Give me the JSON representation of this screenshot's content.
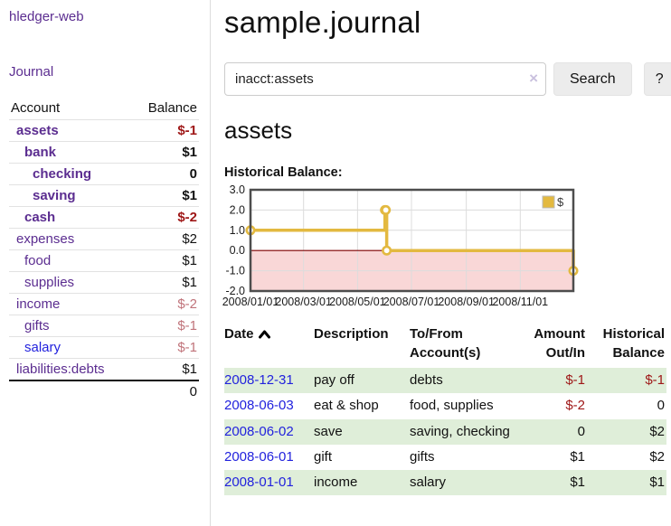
{
  "app": {
    "name": "hledger-web"
  },
  "nav": {
    "journal": "Journal"
  },
  "colors": {
    "link_purple": "#5b2d90",
    "link_blue": "#2222dd",
    "negative_strong": "#9e1616",
    "negative_weak": "#c0737a",
    "row_green": "#dfeed9",
    "chart_line_gold": "#e3b940",
    "chart_negative_pink": "#f9d7d7",
    "chart_zero_line": "#7d0000",
    "chart_border": "#4d4d4d",
    "chart_grid": "#dcdcdc",
    "axis_text": "#1a1a1a"
  },
  "sidebar": {
    "headers": {
      "account": "Account",
      "balance": "Balance"
    },
    "accounts": [
      {
        "label": "assets",
        "balance": "$-1",
        "indent": 0,
        "bold": true,
        "neg": "strong",
        "color": "purple"
      },
      {
        "label": "bank",
        "balance": "$1",
        "indent": 1,
        "bold": true,
        "neg": "none",
        "color": "purple"
      },
      {
        "label": "checking",
        "balance": "0",
        "indent": 2,
        "bold": true,
        "neg": "none",
        "color": "purple"
      },
      {
        "label": "saving",
        "balance": "$1",
        "indent": 2,
        "bold": true,
        "neg": "none",
        "color": "purple"
      },
      {
        "label": "cash",
        "balance": "$-2",
        "indent": 1,
        "bold": true,
        "neg": "strong",
        "color": "purple"
      },
      {
        "label": "expenses",
        "balance": "$2",
        "indent": 0,
        "bold": false,
        "neg": "none",
        "color": "purple"
      },
      {
        "label": "food",
        "balance": "$1",
        "indent": 1,
        "bold": false,
        "neg": "none",
        "color": "purple"
      },
      {
        "label": "supplies",
        "balance": "$1",
        "indent": 1,
        "bold": false,
        "neg": "none",
        "color": "purple"
      },
      {
        "label": "income",
        "balance": "$-2",
        "indent": 0,
        "bold": false,
        "neg": "weak",
        "color": "purple"
      },
      {
        "label": "gifts",
        "balance": "$-1",
        "indent": 1,
        "bold": false,
        "neg": "weak",
        "color": "purple"
      },
      {
        "label": "salary",
        "balance": "$-1",
        "indent": 1,
        "bold": false,
        "neg": "weak",
        "color": "blue"
      },
      {
        "label": "liabilities:debts",
        "balance": "$1",
        "indent": 0,
        "bold": false,
        "neg": "none",
        "color": "purple"
      }
    ],
    "total": "0"
  },
  "main": {
    "title": "sample.journal",
    "account_heading": "assets",
    "chart_label": "Historical Balance:"
  },
  "search": {
    "value": "inacct:assets",
    "clear": "×",
    "button": "Search",
    "help": "?"
  },
  "chart_data": {
    "type": "line",
    "step": true,
    "title": "Historical Balance:",
    "series": [
      {
        "name": "$",
        "x": [
          "2008-01-01",
          "2008-06-01",
          "2008-06-02",
          "2008-06-03",
          "2008-12-31"
        ],
        "y": [
          1,
          2,
          2,
          0,
          -1
        ]
      }
    ],
    "x_domain": [
      "2008-01-01",
      "2008-12-31"
    ],
    "x_tick_dates": [
      "2008-01-01",
      "2008-03-01",
      "2008-05-01",
      "2008-07-01",
      "2008-09-01",
      "2008-11-01"
    ],
    "x_tick_labels": [
      "2008/01/01",
      "2008/03/01",
      "2008/05/01",
      "2008/07/01",
      "2008/09/01",
      "2008/11/01"
    ],
    "y_tick_values": [
      3,
      2,
      1,
      0,
      -1,
      -2
    ],
    "y_tick_labels": [
      "3.0",
      "2.0",
      "1.0",
      "0.0",
      "-1.0",
      "-2.0"
    ],
    "ylim": [
      -2,
      3
    ],
    "grid": true,
    "negative_region": true,
    "legend": {
      "label": "$",
      "position": "top-right"
    }
  },
  "register": {
    "headers": {
      "date": "Date",
      "description": "Description",
      "accounts": "To/From Account(s)",
      "amount": "Amount Out/In",
      "balance": "Historical Balance"
    },
    "rows": [
      {
        "date": "2008-12-31",
        "description": "pay off",
        "accounts": "debts",
        "amount": "$-1",
        "amount_neg": true,
        "balance": "$-1",
        "balance_neg": true
      },
      {
        "date": "2008-06-03",
        "description": "eat & shop",
        "accounts": "food, supplies",
        "amount": "$-2",
        "amount_neg": true,
        "balance": "0",
        "balance_neg": false
      },
      {
        "date": "2008-06-02",
        "description": "save",
        "accounts": "saving, checking",
        "amount": "0",
        "amount_neg": false,
        "balance": "$2",
        "balance_neg": false
      },
      {
        "date": "2008-06-01",
        "description": "gift",
        "accounts": "gifts",
        "amount": "$1",
        "amount_neg": false,
        "balance": "$2",
        "balance_neg": false
      },
      {
        "date": "2008-01-01",
        "description": "income",
        "accounts": "salary",
        "amount": "$1",
        "amount_neg": false,
        "balance": "$1",
        "balance_neg": false
      }
    ]
  }
}
